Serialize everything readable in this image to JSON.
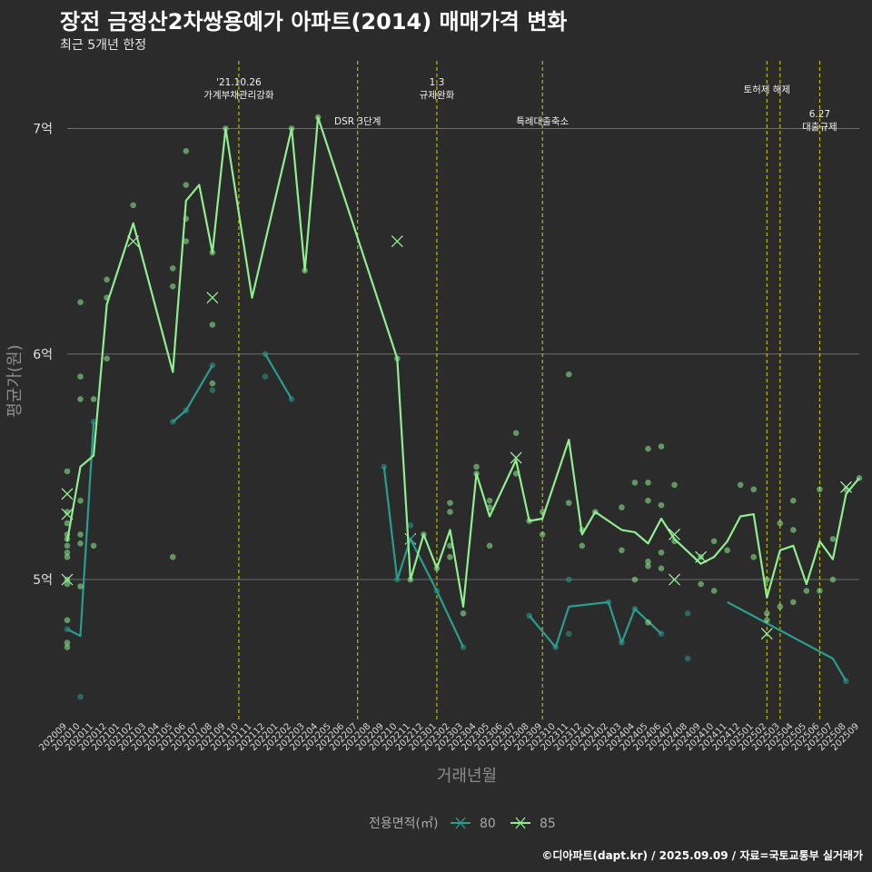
{
  "title": "장전 금정산2차쌍용예가 아파트(2014) 매매가격 변화",
  "subtitle": "최근 5개년 한정",
  "caption": "©디아파트(dapt.kr) / 2025.09.09 / 자료=국토교통부 실거래가",
  "chart_data": {
    "type": "line",
    "title": "장전 금정산2차쌍용예가 아파트(2014) 매매가격 변화",
    "subtitle": "최근 5개년 한정",
    "xlabel": "거래년월",
    "ylabel": "평균가(원)",
    "categories": [
      "202009",
      "202010",
      "202011",
      "202012",
      "202101",
      "202102",
      "202103",
      "202104",
      "202105",
      "202106",
      "202107",
      "202108",
      "202109",
      "202110",
      "202111",
      "202112",
      "202201",
      "202202",
      "202203",
      "202204",
      "202205",
      "202206",
      "202207",
      "202208",
      "202209",
      "202210",
      "202211",
      "202212",
      "202301",
      "202302",
      "202303",
      "202304",
      "202305",
      "202306",
      "202307",
      "202308",
      "202309",
      "202310",
      "202311",
      "202312",
      "202401",
      "202402",
      "202403",
      "202404",
      "202405",
      "202406",
      "202407",
      "202408",
      "202409",
      "202410",
      "202411",
      "202412",
      "202501",
      "202502",
      "202503",
      "202504",
      "202505",
      "202506",
      "202507",
      "202508",
      "202509"
    ],
    "y_ticks": [
      {
        "value": 5.0,
        "label": "5억"
      },
      {
        "value": 6.0,
        "label": "6억"
      },
      {
        "value": 7.0,
        "label": "7억"
      }
    ],
    "ylim": [
      4.38,
      7.3
    ],
    "grid": "horizontal",
    "legend_title": "전용면적(㎡)",
    "legend_position": "bottom",
    "series": [
      {
        "name": "80",
        "color": "#2a9d8f",
        "line": [
          [
            0,
            4.78
          ],
          [
            1,
            4.75
          ],
          [
            2,
            5.7
          ],
          null,
          [
            8,
            5.7
          ],
          [
            9,
            5.75
          ],
          [
            11,
            5.95
          ],
          null,
          [
            15,
            6.0
          ],
          [
            17,
            5.8
          ],
          null,
          [
            24,
            5.5
          ],
          [
            25,
            5.0
          ],
          [
            26,
            5.18
          ],
          [
            28,
            4.95
          ],
          [
            30,
            4.7
          ],
          null,
          [
            35,
            4.84
          ],
          [
            37,
            4.7
          ],
          [
            38,
            4.88
          ],
          [
            41,
            4.9
          ],
          [
            42,
            4.72
          ],
          [
            43,
            4.87
          ],
          [
            45,
            4.76
          ],
          null,
          [
            50,
            4.9
          ],
          [
            58,
            4.65
          ],
          [
            59,
            4.55
          ]
        ],
        "points": [
          [
            0,
            4.78
          ],
          [
            1,
            4.48
          ],
          [
            2,
            5.7
          ],
          [
            8,
            5.7
          ],
          [
            9,
            5.75
          ],
          [
            11,
            5.95
          ],
          [
            11,
            5.84
          ],
          [
            15,
            6.0
          ],
          [
            15,
            5.9
          ],
          [
            17,
            5.8
          ],
          [
            24,
            5.5
          ],
          [
            25,
            5.0
          ],
          [
            26,
            5.24
          ],
          [
            28,
            4.95
          ],
          [
            30,
            4.7
          ],
          [
            35,
            4.84
          ],
          [
            37,
            4.7
          ],
          [
            38,
            5.0
          ],
          [
            38,
            4.76
          ],
          [
            41,
            4.9
          ],
          [
            42,
            4.72
          ],
          [
            43,
            4.87
          ],
          [
            45,
            4.76
          ],
          [
            47,
            4.65
          ],
          [
            47,
            4.85
          ],
          [
            59,
            4.55
          ]
        ],
        "crosses": [
          [
            26,
            5.18
          ]
        ]
      },
      {
        "name": "85",
        "color": "#90ee90",
        "line": [
          [
            0,
            5.17
          ],
          [
            1,
            5.5
          ],
          [
            2,
            5.55
          ],
          [
            3,
            6.22
          ],
          [
            5,
            6.58
          ],
          [
            8,
            5.92
          ],
          [
            9,
            6.68
          ],
          [
            10,
            6.75
          ],
          [
            11,
            6.45
          ],
          [
            12,
            7.0
          ],
          [
            14,
            6.25
          ],
          [
            17,
            7.0
          ],
          [
            18,
            6.37
          ],
          [
            19,
            7.05
          ],
          [
            25,
            5.98
          ],
          [
            26,
            5.0
          ],
          [
            27,
            5.2
          ],
          [
            28,
            5.05
          ],
          [
            29,
            5.22
          ],
          [
            30,
            4.88
          ],
          [
            31,
            5.47
          ],
          [
            32,
            5.28
          ],
          [
            34,
            5.53
          ],
          [
            35,
            5.26
          ],
          [
            36,
            5.27
          ],
          [
            38,
            5.62
          ],
          [
            39,
            5.2
          ],
          [
            40,
            5.3
          ],
          [
            42,
            5.22
          ],
          [
            43,
            5.21
          ],
          [
            44,
            5.16
          ],
          [
            45,
            5.27
          ],
          [
            46,
            5.18
          ],
          [
            48,
            5.07
          ],
          [
            49,
            5.1
          ],
          [
            50,
            5.17
          ],
          [
            51,
            5.28
          ],
          [
            52,
            5.29
          ],
          [
            53,
            4.92
          ],
          [
            54,
            5.13
          ],
          [
            55,
            5.15
          ],
          [
            56,
            4.98
          ],
          [
            57,
            5.17
          ],
          [
            58,
            5.09
          ],
          [
            59,
            5.38
          ],
          [
            60,
            5.45
          ]
        ],
        "points": [
          [
            0,
            5.48
          ],
          [
            0,
            5.3
          ],
          [
            0,
            5.25
          ],
          [
            0,
            5.2
          ],
          [
            0,
            5.18
          ],
          [
            0,
            5.15
          ],
          [
            0,
            5.12
          ],
          [
            0,
            5.1
          ],
          [
            0,
            5.0
          ],
          [
            0,
            4.98
          ],
          [
            0,
            4.82
          ],
          [
            0,
            4.72
          ],
          [
            0,
            4.7
          ],
          [
            1,
            6.23
          ],
          [
            1,
            5.9
          ],
          [
            1,
            5.8
          ],
          [
            1,
            5.35
          ],
          [
            1,
            5.2
          ],
          [
            1,
            5.16
          ],
          [
            1,
            4.97
          ],
          [
            2,
            5.8
          ],
          [
            2,
            5.15
          ],
          [
            3,
            6.33
          ],
          [
            3,
            6.25
          ],
          [
            3,
            5.98
          ],
          [
            5,
            6.66
          ],
          [
            8,
            6.38
          ],
          [
            8,
            6.3
          ],
          [
            8,
            5.1
          ],
          [
            9,
            6.9
          ],
          [
            9,
            6.75
          ],
          [
            9,
            6.6
          ],
          [
            9,
            6.5
          ],
          [
            11,
            6.45
          ],
          [
            11,
            6.13
          ],
          [
            11,
            5.87
          ],
          [
            12,
            7.0
          ],
          [
            17,
            7.0
          ],
          [
            18,
            6.37
          ],
          [
            19,
            7.05
          ],
          [
            25,
            5.98
          ],
          [
            26,
            5.0
          ],
          [
            27,
            5.2
          ],
          [
            28,
            5.05
          ],
          [
            29,
            5.34
          ],
          [
            29,
            5.3
          ],
          [
            29,
            5.15
          ],
          [
            29,
            5.1
          ],
          [
            30,
            4.85
          ],
          [
            31,
            5.5
          ],
          [
            31,
            5.47
          ],
          [
            32,
            5.35
          ],
          [
            32,
            5.32
          ],
          [
            32,
            5.15
          ],
          [
            34,
            5.65
          ],
          [
            34,
            5.47
          ],
          [
            35,
            5.26
          ],
          [
            36,
            5.3
          ],
          [
            36,
            5.2
          ],
          [
            38,
            5.91
          ],
          [
            38,
            5.34
          ],
          [
            39,
            5.22
          ],
          [
            39,
            5.15
          ],
          [
            40,
            5.3
          ],
          [
            42,
            5.32
          ],
          [
            42,
            5.13
          ],
          [
            43,
            5.43
          ],
          [
            43,
            5.0
          ],
          [
            44,
            5.58
          ],
          [
            44,
            5.43
          ],
          [
            44,
            5.35
          ],
          [
            44,
            5.08
          ],
          [
            44,
            5.06
          ],
          [
            44,
            4.81
          ],
          [
            45,
            5.59
          ],
          [
            45,
            5.33
          ],
          [
            45,
            5.12
          ],
          [
            45,
            5.05
          ],
          [
            46,
            5.42
          ],
          [
            46,
            5.17
          ],
          [
            48,
            5.1
          ],
          [
            48,
            4.98
          ],
          [
            49,
            5.17
          ],
          [
            49,
            4.95
          ],
          [
            50,
            5.13
          ],
          [
            51,
            5.42
          ],
          [
            52,
            5.4
          ],
          [
            52,
            5.1
          ],
          [
            53,
            5.0
          ],
          [
            53,
            4.85
          ],
          [
            53,
            4.82
          ],
          [
            54,
            5.25
          ],
          [
            54,
            4.88
          ],
          [
            55,
            5.35
          ],
          [
            55,
            5.22
          ],
          [
            55,
            4.9
          ],
          [
            56,
            4.95
          ],
          [
            57,
            5.4
          ],
          [
            57,
            4.95
          ],
          [
            58,
            5.18
          ],
          [
            58,
            5.0
          ],
          [
            59,
            5.4
          ],
          [
            60,
            5.45
          ]
        ],
        "crosses": [
          [
            0,
            5.38
          ],
          [
            0,
            5.29
          ],
          [
            0,
            5.0
          ],
          [
            5,
            6.5
          ],
          [
            11,
            6.25
          ],
          [
            25,
            6.5
          ],
          [
            34,
            5.54
          ],
          [
            46,
            5.2
          ],
          [
            46,
            5.0
          ],
          [
            48,
            5.1
          ],
          [
            53,
            4.76
          ],
          [
            59,
            5.41
          ]
        ]
      }
    ],
    "annotations": [
      {
        "x": 13.0,
        "text": [
          "'21.10.26",
          "가계부채관리강화"
        ]
      },
      {
        "x": 22.0,
        "text": [
          "DSR 3단계"
        ]
      },
      {
        "x": 28.0,
        "text": [
          "1.3",
          "규제완화"
        ]
      },
      {
        "x": 36.0,
        "text": [
          "특례대출축소"
        ]
      },
      {
        "x": 53.0,
        "text": [
          "토허제 해제"
        ]
      },
      {
        "x": 54.0,
        "text": []
      },
      {
        "x": 57.0,
        "text": [
          "6.27",
          "대출규제"
        ]
      }
    ],
    "vline_color": "#d4d400"
  }
}
